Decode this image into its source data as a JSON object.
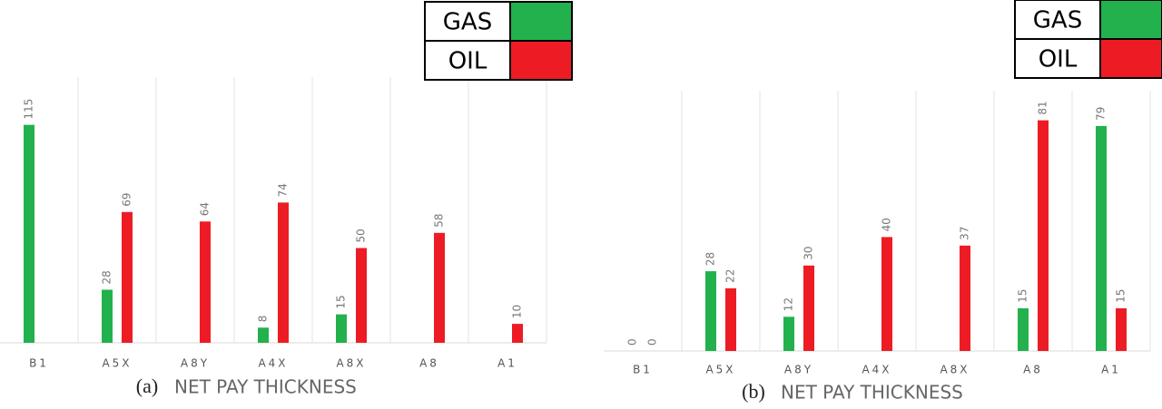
{
  "chart_data": [
    {
      "type": "bar",
      "label": "(a)",
      "title": "NET PAY THICKNESS",
      "categories": [
        "B1",
        "A5X",
        "A8Y",
        "A4X",
        "A8X",
        "A8",
        "A1"
      ],
      "series": [
        {
          "name": "GAS",
          "color": "#22b14c",
          "values": [
            115,
            28,
            null,
            8,
            15,
            null,
            null
          ]
        },
        {
          "name": "OIL",
          "color": "#ed1c24",
          "values": [
            null,
            69,
            64,
            74,
            50,
            58,
            10
          ]
        }
      ]
    },
    {
      "type": "bar",
      "label": "(b)",
      "title": "NET PAY THICKNESS",
      "categories": [
        "B1",
        "A5X",
        "A8Y",
        "A4X",
        "A8X",
        "A8",
        "A1"
      ],
      "series": [
        {
          "name": "GAS",
          "color": "#22b14c",
          "values": [
            0,
            28,
            12,
            null,
            null,
            15,
            79
          ]
        },
        {
          "name": "OIL",
          "color": "#ed1c24",
          "values": [
            0,
            22,
            30,
            40,
            37,
            81,
            15
          ]
        }
      ]
    }
  ]
}
